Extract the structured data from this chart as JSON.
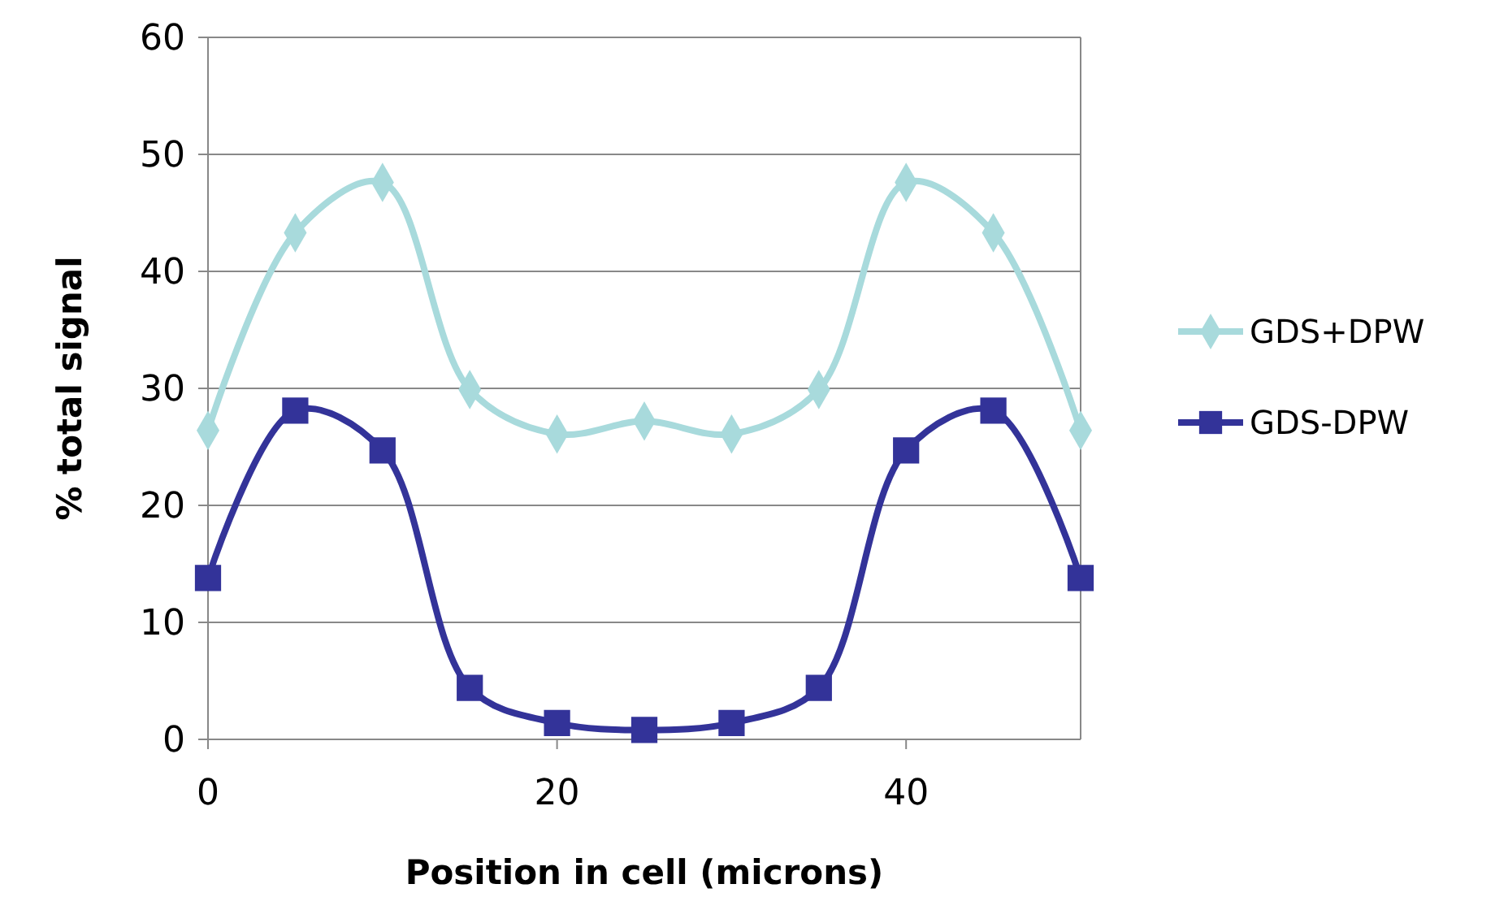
{
  "chart_data": {
    "type": "line",
    "xlabel": "Position in cell (microns)",
    "ylabel": "% total signal",
    "xlim": [
      0,
      50
    ],
    "xticks": [
      0,
      20,
      40
    ],
    "ylim": [
      0,
      60
    ],
    "yticks": [
      0,
      10,
      20,
      30,
      40,
      50,
      60
    ],
    "grid": "y",
    "legend": "right",
    "line_style": "solid",
    "series": [
      {
        "name": "GDS+DPW",
        "color": "#a8dadc",
        "marker": "diamond",
        "x": [
          0,
          5,
          10,
          15,
          20,
          25,
          30,
          35,
          40,
          45,
          50
        ],
        "values": [
          26.4,
          43.3,
          47.6,
          29.9,
          26.1,
          27.2,
          26.1,
          29.9,
          47.6,
          43.3,
          26.4
        ]
      },
      {
        "name": "GDS-DPW",
        "color": "#333399",
        "marker": "square",
        "x": [
          0,
          5,
          10,
          15,
          20,
          25,
          30,
          35,
          40,
          45,
          50
        ],
        "values": [
          13.8,
          28.1,
          24.7,
          4.4,
          1.4,
          0.8,
          1.4,
          4.4,
          24.7,
          28.1,
          13.8
        ]
      }
    ]
  }
}
